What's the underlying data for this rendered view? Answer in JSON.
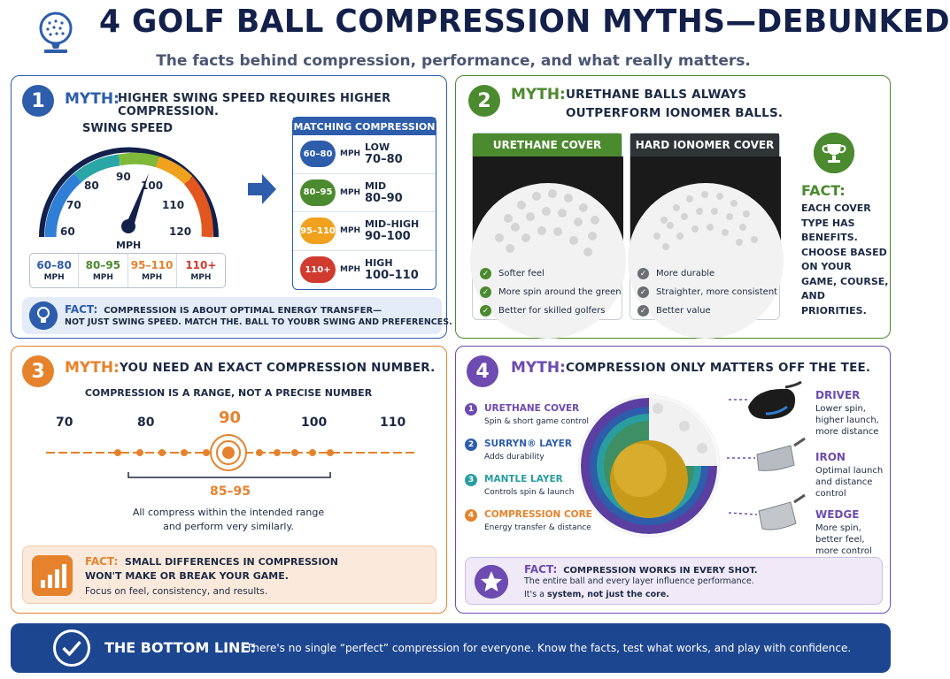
{
  "header": {
    "title": "4 GOLF BALL COMPRESSION MYTHS—DEBUNKED",
    "subtitle": "The facts behind compression, performance, and what really matters.",
    "logo_icon": "golf-ball-trophy-icon"
  },
  "colors": {
    "blue": "#2d5dab",
    "green": "#4b8a2e",
    "orange": "#e6822c",
    "purple": "#6d4bb0",
    "navy": "#1d4690"
  },
  "myth1": {
    "number": "1",
    "myth_label": "MYTH:",
    "myth_text": "HIGHER SWING SPEED REQUIRES HIGHER COMPRESSION.",
    "gauge_title": "SWING SPEED",
    "gauge_ticks": [
      "60",
      "70",
      "80",
      "90",
      "100",
      "110",
      "120"
    ],
    "gauge_unit": "MPH",
    "ranges": [
      {
        "value": "60–80",
        "unit": "MPH",
        "color": "#2d5dab"
      },
      {
        "value": "80–95",
        "unit": "MPH",
        "color": "#4b8a2e"
      },
      {
        "value": "95–110",
        "unit": "MPH",
        "color": "#e6822c"
      },
      {
        "value": "110+",
        "unit": "MPH",
        "color": "#d03a2f"
      }
    ],
    "matching_title": "MATCHING COMPRESSION",
    "matching": [
      {
        "speed": "60–80",
        "unit": "MPH",
        "label": "LOW",
        "value": "70–80",
        "color": "#2d5dab"
      },
      {
        "speed": "80–95",
        "unit": "MPH",
        "label": "MID",
        "value": "80–90",
        "color": "#4b8a2e"
      },
      {
        "speed": "95–110",
        "unit": "MPH",
        "label": "MID–HIGH",
        "value": "90–100",
        "color": "#f0a21e"
      },
      {
        "speed": "110+",
        "unit": "MPH",
        "label": "HIGH",
        "value": "100–110",
        "color": "#d03a2f"
      }
    ],
    "fact_label": "FACT:",
    "fact_line1": "COMPRESSION IS ABOUT OPTIMAL ENERGY TRANSFER—",
    "fact_line2": "NOT JUST SWING SPEED. MATCH THE. BALL TO YOUBR SWING AND PREFERENCES."
  },
  "myth2": {
    "number": "2",
    "myth_label": "MYTH:",
    "myth_line1": "URETHANE BALLS ALWAYS",
    "myth_line2": "OUTPERFORM IONOMER BALLS.",
    "urethane": {
      "title": "URETHANE COVER",
      "items": [
        "Softer feel",
        "More spin around the green",
        "Better for skilled golfers"
      ]
    },
    "ionomer": {
      "title": "HARD IONOMER COVER",
      "items": [
        "More durable",
        "Straighter, more consistent",
        "Better value"
      ]
    },
    "fact_label": "FACT:",
    "fact_text": "EACH COVER TYPE HAS BENEFITS. CHOOSE BASED ON YOUR GAME, COURSE, AND PRIORITIES."
  },
  "myth3": {
    "number": "3",
    "myth_label": "MYTH:",
    "myth_text": "YOU NEED AN EXACT COMPRESSION NUMBER.",
    "subtitle": "COMPRESSION IS A RANGE, NOT A PRECISE NUMBER",
    "scale": [
      "70",
      "80",
      "90",
      "100",
      "110"
    ],
    "target": 90,
    "range_label": "85–95",
    "note_line1": "All compress within the intended range",
    "note_line2": "and perform very similarly.",
    "fact_label": "FACT:",
    "fact_line1": "SMALL DIFFERENCES IN COMPRESSION",
    "fact_line2": "WON'T MAKE OR BREAK YOUR GAME.",
    "fact_line3": "Focus on feel, consistency, and results."
  },
  "myth4": {
    "number": "4",
    "myth_label": "MYTH:",
    "myth_text": "COMPRESSION ONLY MATTERS OFF THE TEE.",
    "layers": [
      {
        "n": "1",
        "title": "URETHANE COVER",
        "desc": "Spin & short game control",
        "color": "#6d4bb0"
      },
      {
        "n": "2",
        "title": "SURRYN® LAYER",
        "desc": "Adds durability",
        "color": "#2d5dab"
      },
      {
        "n": "3",
        "title": "MANTLE LAYER",
        "desc": "Controls spin & launch",
        "color": "#2a9d9f"
      },
      {
        "n": "4",
        "title": "COMPRESSION CORE",
        "desc": "Energy transfer & distance",
        "color": "#e6822c"
      }
    ],
    "clubs": [
      {
        "title": "DRIVER",
        "l1": "Lower spin,",
        "l2": "higher launch,",
        "l3": "more distance"
      },
      {
        "title": "IRON",
        "l1": "Optimal launch",
        "l2": "and distance",
        "l3": "control"
      },
      {
        "title": "WEDGE",
        "l1": "More spin,",
        "l2": "better feel,",
        "l3": "more control"
      }
    ],
    "fact_label": "FACT:",
    "fact_line1": "COMPRESSION WORKS IN EVERY SHOT.",
    "fact_line2": "The entire ball and every layer influence performance.",
    "fact_line3_a": "It's a",
    "fact_line3_b": "system, not just the core."
  },
  "bottom": {
    "heading": "THE BOTTOM LINE:",
    "text": "There's no single “perfect” compression for everyone. Know the facts, test what works, and play with confidence."
  }
}
